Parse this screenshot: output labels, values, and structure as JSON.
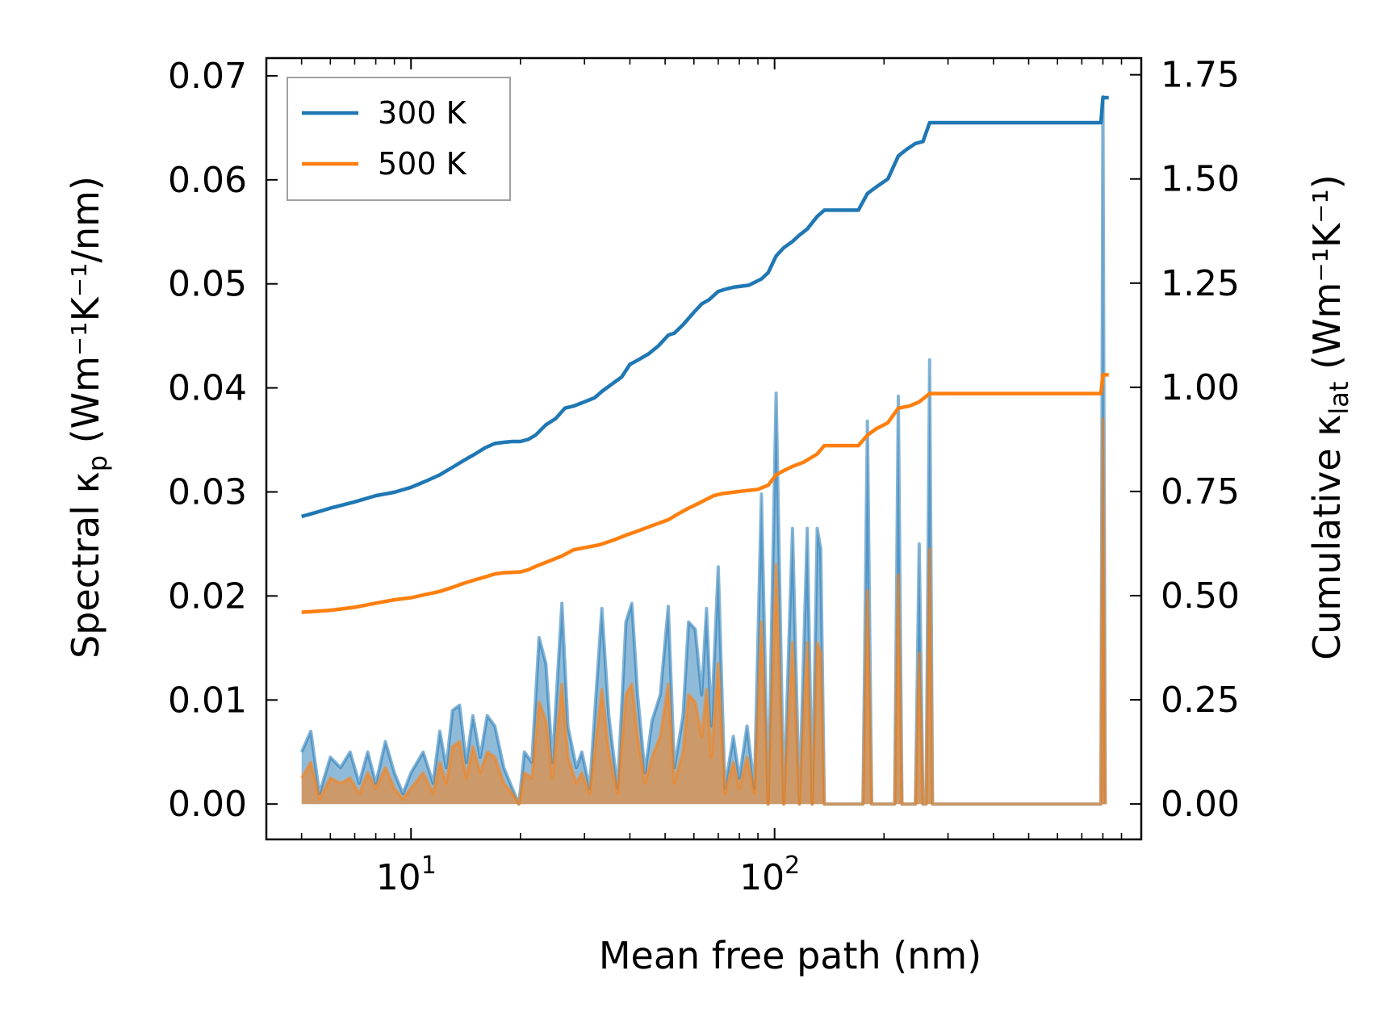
{
  "chart_data": {
    "type": "line",
    "title": "",
    "xlabel": "Mean free path (nm)",
    "ylabel_left": {
      "main": "Spectral κ",
      "sub": "p",
      "units": " (Wm⁻¹K⁻¹/nm)"
    },
    "ylabel_right": {
      "main": "Cumulative κ",
      "sub": "lat",
      "units": " (Wm⁻¹K⁻¹)"
    },
    "x_scale": "log",
    "xlim": [
      4.0,
      1020
    ],
    "ylim_left": [
      -0.0034,
      0.0717
    ],
    "ylim_right": [
      -0.085,
      1.79
    ],
    "left_ticks": [
      {
        "value": 0.0,
        "label": "0.00"
      },
      {
        "value": 0.01,
        "label": "0.01"
      },
      {
        "value": 0.02,
        "label": "0.02"
      },
      {
        "value": 0.03,
        "label": "0.03"
      },
      {
        "value": 0.04,
        "label": "0.04"
      },
      {
        "value": 0.05,
        "label": "0.05"
      },
      {
        "value": 0.06,
        "label": "0.06"
      },
      {
        "value": 0.07,
        "label": "0.07"
      }
    ],
    "right_ticks": [
      {
        "value": 0.0,
        "label": "0.00"
      },
      {
        "value": 0.25,
        "label": "0.25"
      },
      {
        "value": 0.5,
        "label": "0.50"
      },
      {
        "value": 0.75,
        "label": "0.75"
      },
      {
        "value": 1.0,
        "label": "1.00"
      },
      {
        "value": 1.25,
        "label": "1.25"
      },
      {
        "value": 1.5,
        "label": "1.50"
      },
      {
        "value": 1.75,
        "label": "1.75"
      }
    ],
    "x_ticks": [
      {
        "value": 10,
        "base": "10",
        "exp": "1"
      },
      {
        "value": 100,
        "base": "10",
        "exp": "2"
      }
    ],
    "legend": {
      "position": "top-left",
      "entries": [
        "300 K",
        "500 K"
      ]
    },
    "series": [
      {
        "name": "300 K",
        "color": "#1f77b4",
        "spectral": [
          [
            5.0,
            0.005
          ],
          [
            5.3,
            0.007
          ],
          [
            5.6,
            0.001
          ],
          [
            6.0,
            0.0045
          ],
          [
            6.4,
            0.0035
          ],
          [
            6.8,
            0.005
          ],
          [
            7.2,
            0.002
          ],
          [
            7.6,
            0.005
          ],
          [
            8.0,
            0.002
          ],
          [
            8.5,
            0.006
          ],
          [
            9.0,
            0.003
          ],
          [
            9.5,
            0.001
          ],
          [
            10.0,
            0.003
          ],
          [
            10.8,
            0.005
          ],
          [
            11.5,
            0.002
          ],
          [
            12.0,
            0.007
          ],
          [
            12.5,
            0.0035
          ],
          [
            13.0,
            0.009
          ],
          [
            13.6,
            0.0095
          ],
          [
            14.2,
            0.004
          ],
          [
            14.8,
            0.0085
          ],
          [
            15.5,
            0.0045
          ],
          [
            16.2,
            0.0085
          ],
          [
            17.0,
            0.0075
          ],
          [
            18.0,
            0.0035
          ],
          [
            19.0,
            0.0015
          ],
          [
            19.8,
            0.0
          ],
          [
            20.5,
            0.005
          ],
          [
            21.5,
            0.004
          ],
          [
            22.5,
            0.016
          ],
          [
            23.5,
            0.0135
          ],
          [
            24.5,
            0.004
          ],
          [
            26.0,
            0.0193
          ],
          [
            27.0,
            0.0075
          ],
          [
            28.5,
            0.0035
          ],
          [
            29.5,
            0.005
          ],
          [
            31.0,
            0.0015
          ],
          [
            33.5,
            0.0188
          ],
          [
            35.0,
            0.0085
          ],
          [
            37.0,
            0.0015
          ],
          [
            39.0,
            0.0175
          ],
          [
            40.5,
            0.0193
          ],
          [
            42.0,
            0.0105
          ],
          [
            44.0,
            0.003
          ],
          [
            46.0,
            0.008
          ],
          [
            48.5,
            0.0105
          ],
          [
            51.0,
            0.019
          ],
          [
            53.0,
            0.0035
          ],
          [
            56.0,
            0.0085
          ],
          [
            58.0,
            0.0175
          ],
          [
            60.5,
            0.0168
          ],
          [
            63.0,
            0.0105
          ],
          [
            65.0,
            0.0188
          ],
          [
            67.0,
            0.0075
          ],
          [
            70.0,
            0.0228
          ],
          [
            73.0,
            0.0015
          ],
          [
            77.0,
            0.0065
          ],
          [
            80.0,
            0.0025
          ],
          [
            84.0,
            0.0075
          ],
          [
            88.0,
            0.0015
          ],
          [
            92.0,
            0.0298
          ],
          [
            96.0,
            0.0
          ],
          [
            101.0,
            0.0395
          ],
          [
            106.0,
            0.0
          ],
          [
            112.0,
            0.0265
          ],
          [
            117.0,
            0.0
          ],
          [
            123.0,
            0.0265
          ],
          [
            127.0,
            0.0
          ],
          [
            131.0,
            0.0265
          ],
          [
            134.0,
            0.0245
          ],
          [
            137.0,
            0.0
          ],
          [
            175.0,
            0.0
          ],
          [
            180.0,
            0.0368
          ],
          [
            185.0,
            0.0
          ],
          [
            214.0,
            0.0
          ],
          [
            219.0,
            0.0392
          ],
          [
            224.0,
            0.0
          ],
          [
            244.0,
            0.0
          ],
          [
            250.0,
            0.025
          ],
          [
            256.0,
            0.0
          ],
          [
            261.0,
            0.0
          ],
          [
            267.0,
            0.0427
          ],
          [
            272.0,
            0.0
          ],
          [
            790.0,
            0.0
          ],
          [
            800.0,
            0.068
          ],
          [
            812.0,
            0.0
          ]
        ],
        "cumulative": [
          [
            5.0,
            0.69
          ],
          [
            5.5,
            0.7
          ],
          [
            6.0,
            0.71
          ],
          [
            7.0,
            0.725
          ],
          [
            8.0,
            0.74
          ],
          [
            9.0,
            0.748
          ],
          [
            10.0,
            0.76
          ],
          [
            11.0,
            0.775
          ],
          [
            12.0,
            0.79
          ],
          [
            13.0,
            0.808
          ],
          [
            14.0,
            0.825
          ],
          [
            15.0,
            0.84
          ],
          [
            16.0,
            0.855
          ],
          [
            17.0,
            0.865
          ],
          [
            18.0,
            0.868
          ],
          [
            19.0,
            0.87
          ],
          [
            20.0,
            0.87
          ],
          [
            21.0,
            0.875
          ],
          [
            22.0,
            0.885
          ],
          [
            23.5,
            0.91
          ],
          [
            25.0,
            0.925
          ],
          [
            26.5,
            0.95
          ],
          [
            28.0,
            0.955
          ],
          [
            30.0,
            0.965
          ],
          [
            32.0,
            0.975
          ],
          [
            33.5,
            0.99
          ],
          [
            36.0,
            1.01
          ],
          [
            38.0,
            1.025
          ],
          [
            40.0,
            1.055
          ],
          [
            42.0,
            1.065
          ],
          [
            45.0,
            1.08
          ],
          [
            48.0,
            1.1
          ],
          [
            51.0,
            1.125
          ],
          [
            53.0,
            1.13
          ],
          [
            56.0,
            1.15
          ],
          [
            60.0,
            1.18
          ],
          [
            63.0,
            1.2
          ],
          [
            66.0,
            1.21
          ],
          [
            70.0,
            1.23
          ],
          [
            73.0,
            1.235
          ],
          [
            77.0,
            1.24
          ],
          [
            85.0,
            1.245
          ],
          [
            92.0,
            1.26
          ],
          [
            96.0,
            1.275
          ],
          [
            101.0,
            1.315
          ],
          [
            106.0,
            1.335
          ],
          [
            112.0,
            1.35
          ],
          [
            117.0,
            1.365
          ],
          [
            123.0,
            1.38
          ],
          [
            131.0,
            1.41
          ],
          [
            137.0,
            1.425
          ],
          [
            170.0,
            1.425
          ],
          [
            180.0,
            1.465
          ],
          [
            190.0,
            1.48
          ],
          [
            205.0,
            1.5
          ],
          [
            219.0,
            1.555
          ],
          [
            230.0,
            1.57
          ],
          [
            244.0,
            1.585
          ],
          [
            256.0,
            1.59
          ],
          [
            267.0,
            1.635
          ],
          [
            272.0,
            1.635
          ],
          [
            790.0,
            1.635
          ],
          [
            800.0,
            1.695
          ],
          [
            830.0,
            1.695
          ]
        ]
      },
      {
        "name": "500 K",
        "color": "#ff7f0e",
        "spectral": [
          [
            5.0,
            0.0025
          ],
          [
            5.3,
            0.004
          ],
          [
            5.6,
            0.0005
          ],
          [
            6.0,
            0.0025
          ],
          [
            6.4,
            0.002
          ],
          [
            6.8,
            0.0025
          ],
          [
            7.2,
            0.001
          ],
          [
            7.6,
            0.003
          ],
          [
            8.0,
            0.0015
          ],
          [
            8.5,
            0.0035
          ],
          [
            9.0,
            0.0015
          ],
          [
            9.5,
            0.0005
          ],
          [
            10.0,
            0.0015
          ],
          [
            10.8,
            0.003
          ],
          [
            11.5,
            0.001
          ],
          [
            12.0,
            0.004
          ],
          [
            12.5,
            0.002
          ],
          [
            13.0,
            0.0055
          ],
          [
            13.6,
            0.006
          ],
          [
            14.2,
            0.0025
          ],
          [
            14.8,
            0.0055
          ],
          [
            15.5,
            0.003
          ],
          [
            16.2,
            0.005
          ],
          [
            17.0,
            0.0045
          ],
          [
            18.0,
            0.002
          ],
          [
            19.0,
            0.001
          ],
          [
            19.8,
            0.0
          ],
          [
            20.5,
            0.003
          ],
          [
            21.5,
            0.0025
          ],
          [
            22.5,
            0.0098
          ],
          [
            23.5,
            0.008
          ],
          [
            24.5,
            0.0025
          ],
          [
            26.0,
            0.0115
          ],
          [
            27.0,
            0.0045
          ],
          [
            28.5,
            0.002
          ],
          [
            29.5,
            0.003
          ],
          [
            31.0,
            0.001
          ],
          [
            33.5,
            0.011
          ],
          [
            35.0,
            0.005
          ],
          [
            37.0,
            0.001
          ],
          [
            39.0,
            0.0105
          ],
          [
            40.5,
            0.0115
          ],
          [
            42.0,
            0.0065
          ],
          [
            44.0,
            0.002
          ],
          [
            46.0,
            0.0045
          ],
          [
            48.5,
            0.0065
          ],
          [
            51.0,
            0.0115
          ],
          [
            53.0,
            0.002
          ],
          [
            56.0,
            0.005
          ],
          [
            58.0,
            0.0105
          ],
          [
            60.5,
            0.0098
          ],
          [
            63.0,
            0.0065
          ],
          [
            65.0,
            0.011
          ],
          [
            67.0,
            0.0045
          ],
          [
            70.0,
            0.0135
          ],
          [
            73.0,
            0.001
          ],
          [
            77.0,
            0.004
          ],
          [
            80.0,
            0.0015
          ],
          [
            84.0,
            0.0045
          ],
          [
            88.0,
            0.001
          ],
          [
            92.0,
            0.0175
          ],
          [
            96.0,
            0.0
          ],
          [
            101.0,
            0.023
          ],
          [
            106.0,
            0.0
          ],
          [
            112.0,
            0.0155
          ],
          [
            117.0,
            0.0
          ],
          [
            123.0,
            0.0155
          ],
          [
            127.0,
            0.0
          ],
          [
            131.0,
            0.0155
          ],
          [
            134.0,
            0.0145
          ],
          [
            137.0,
            0.0
          ],
          [
            175.0,
            0.0
          ],
          [
            180.0,
            0.0205
          ],
          [
            185.0,
            0.0
          ],
          [
            214.0,
            0.0
          ],
          [
            219.0,
            0.022
          ],
          [
            224.0,
            0.0
          ],
          [
            244.0,
            0.0
          ],
          [
            250.0,
            0.0145
          ],
          [
            256.0,
            0.0
          ],
          [
            261.0,
            0.0
          ],
          [
            267.0,
            0.0245
          ],
          [
            272.0,
            0.0
          ],
          [
            790.0,
            0.0
          ],
          [
            800.0,
            0.037
          ],
          [
            812.0,
            0.0
          ]
        ],
        "cumulative": [
          [
            5.0,
            0.46
          ],
          [
            6.0,
            0.465
          ],
          [
            7.0,
            0.472
          ],
          [
            8.0,
            0.482
          ],
          [
            9.0,
            0.49
          ],
          [
            10.0,
            0.495
          ],
          [
            11.0,
            0.503
          ],
          [
            12.0,
            0.51
          ],
          [
            13.0,
            0.52
          ],
          [
            14.0,
            0.53
          ],
          [
            15.0,
            0.538
          ],
          [
            16.0,
            0.545
          ],
          [
            17.0,
            0.552
          ],
          [
            18.0,
            0.555
          ],
          [
            20.0,
            0.557
          ],
          [
            21.0,
            0.562
          ],
          [
            22.0,
            0.57
          ],
          [
            24.0,
            0.583
          ],
          [
            26.0,
            0.595
          ],
          [
            28.0,
            0.61
          ],
          [
            30.0,
            0.615
          ],
          [
            33.0,
            0.622
          ],
          [
            36.0,
            0.633
          ],
          [
            39.0,
            0.645
          ],
          [
            42.0,
            0.655
          ],
          [
            46.0,
            0.668
          ],
          [
            51.0,
            0.682
          ],
          [
            54.0,
            0.695
          ],
          [
            58.0,
            0.71
          ],
          [
            63.0,
            0.725
          ],
          [
            68.0,
            0.74
          ],
          [
            72.0,
            0.745
          ],
          [
            80.0,
            0.75
          ],
          [
            90.0,
            0.755
          ],
          [
            96.0,
            0.765
          ],
          [
            101.0,
            0.79
          ],
          [
            106.0,
            0.8
          ],
          [
            112.0,
            0.81
          ],
          [
            120.0,
            0.82
          ],
          [
            131.0,
            0.84
          ],
          [
            137.0,
            0.86
          ],
          [
            170.0,
            0.86
          ],
          [
            180.0,
            0.885
          ],
          [
            190.0,
            0.9
          ],
          [
            205.0,
            0.915
          ],
          [
            219.0,
            0.95
          ],
          [
            235.0,
            0.955
          ],
          [
            250.0,
            0.965
          ],
          [
            267.0,
            0.985
          ],
          [
            272.0,
            0.985
          ],
          [
            790.0,
            0.985
          ],
          [
            800.0,
            1.03
          ],
          [
            830.0,
            1.03
          ]
        ]
      }
    ]
  }
}
